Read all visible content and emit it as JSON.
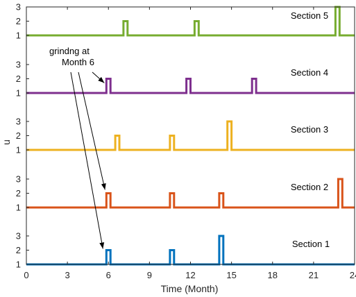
{
  "chart_data": {
    "type": "line",
    "xlabel": "Time (Month)",
    "ylabel": "u",
    "xlim": [
      0,
      24
    ],
    "x_ticks": [
      0,
      3,
      6,
      9,
      12,
      15,
      18,
      21,
      24
    ],
    "y_ticks": [
      1,
      2,
      3
    ],
    "pulse_width_months": 0.3,
    "grid": false,
    "legend": "none",
    "series": [
      {
        "name": "Section 1",
        "color": "#0072BD",
        "pulses": [
          {
            "x": 5.85,
            "level": 2
          },
          {
            "x": 10.5,
            "level": 2
          },
          {
            "x": 14.1,
            "level": 3
          }
        ]
      },
      {
        "name": "Section 2",
        "color": "#D95319",
        "pulses": [
          {
            "x": 5.85,
            "level": 2
          },
          {
            "x": 10.5,
            "level": 2
          },
          {
            "x": 14.1,
            "level": 2
          },
          {
            "x": 22.8,
            "level": 3
          }
        ]
      },
      {
        "name": "Section 3",
        "color": "#EDB120",
        "pulses": [
          {
            "x": 6.5,
            "level": 2
          },
          {
            "x": 10.5,
            "level": 2
          },
          {
            "x": 14.7,
            "level": 3
          }
        ]
      },
      {
        "name": "Section 4",
        "color": "#7E2F8E",
        "pulses": [
          {
            "x": 5.85,
            "level": 2
          },
          {
            "x": 11.7,
            "level": 2
          },
          {
            "x": 16.5,
            "level": 2
          }
        ]
      },
      {
        "name": "Section 5",
        "color": "#77AC30",
        "pulses": [
          {
            "x": 7.1,
            "level": 2
          },
          {
            "x": 12.3,
            "level": 2
          },
          {
            "x": 22.6,
            "level": 3
          }
        ]
      }
    ],
    "annotation": {
      "lines": [
        "grindng at",
        "Month 6"
      ]
    }
  }
}
